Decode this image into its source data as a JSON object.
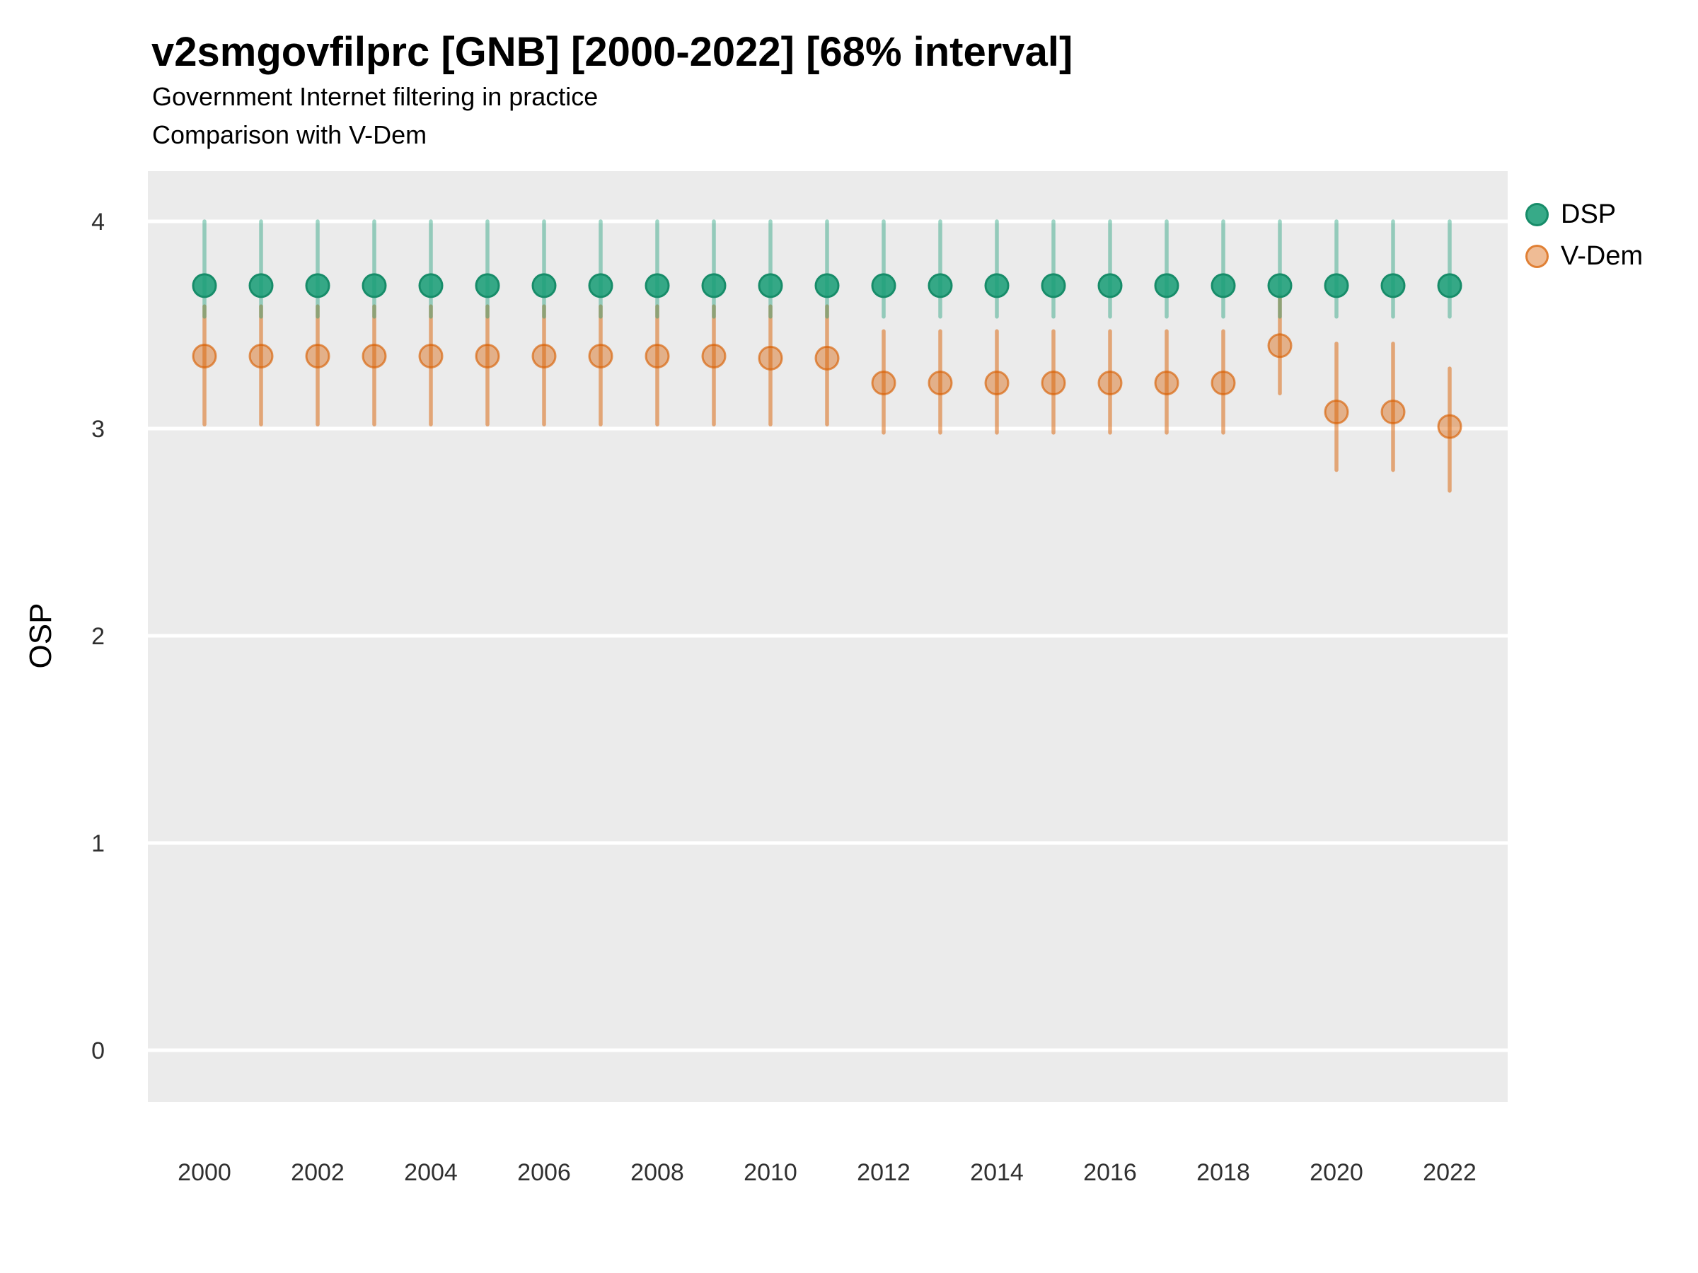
{
  "header": {
    "title": "v2smgovfilprc [GNB] [2000-2022] [68% interval]",
    "subtitle1": "Government Internet filtering in practice",
    "subtitle2": "Comparison with V-Dem"
  },
  "legend": {
    "position": "right-top",
    "items": [
      {
        "label": "DSP",
        "color_key": "dsp"
      },
      {
        "label": "V-Dem",
        "color_key": "vdem"
      }
    ]
  },
  "colors": {
    "dsp": "#1b9e77",
    "vdem": "#d95f02",
    "dsp_bar": "rgba(27,158,119,0.42)",
    "vdem_bar": "rgba(217,95,2,0.5)",
    "dsp_point_fill": "rgba(27,158,119,0.88)",
    "dsp_point_stroke": "#178c69",
    "vdem_point_fill": "rgba(217,95,2,0.42)",
    "vdem_point_stroke": "rgba(217,95,2,0.65)",
    "panel_bg": "#ebebeb",
    "gridline": "#ffffff",
    "axis_text": "#303030",
    "text": "#000000"
  },
  "chart_data": {
    "type": "pointrange",
    "title": "v2smgovfilprc [GNB] [2000-2022] [68% interval]",
    "subtitle": "Government Internet filtering in practice — Comparison with V-Dem",
    "xlabel": "",
    "ylabel": "OSP",
    "xlim": [
      1999,
      2023
    ],
    "ylim": [
      -0.25,
      4.25
    ],
    "grid": "major-horizontal-only",
    "x_ticks": [
      2000,
      2002,
      2004,
      2006,
      2008,
      2010,
      2012,
      2014,
      2016,
      2018,
      2020,
      2022
    ],
    "y_ticks": [
      0,
      1,
      2,
      3,
      4
    ],
    "interval_level": "68%",
    "series": [
      {
        "name": "DSP",
        "color_key": "dsp",
        "values": [
          {
            "year": 2000,
            "y": 3.69,
            "lo": 3.54,
            "hi": 4.0
          },
          {
            "year": 2001,
            "y": 3.69,
            "lo": 3.54,
            "hi": 4.0
          },
          {
            "year": 2002,
            "y": 3.69,
            "lo": 3.54,
            "hi": 4.0
          },
          {
            "year": 2003,
            "y": 3.69,
            "lo": 3.54,
            "hi": 4.0
          },
          {
            "year": 2004,
            "y": 3.69,
            "lo": 3.54,
            "hi": 4.0
          },
          {
            "year": 2005,
            "y": 3.69,
            "lo": 3.54,
            "hi": 4.0
          },
          {
            "year": 2006,
            "y": 3.69,
            "lo": 3.54,
            "hi": 4.0
          },
          {
            "year": 2007,
            "y": 3.69,
            "lo": 3.54,
            "hi": 4.0
          },
          {
            "year": 2008,
            "y": 3.69,
            "lo": 3.54,
            "hi": 4.0
          },
          {
            "year": 2009,
            "y": 3.69,
            "lo": 3.54,
            "hi": 4.0
          },
          {
            "year": 2010,
            "y": 3.69,
            "lo": 3.54,
            "hi": 4.0
          },
          {
            "year": 2011,
            "y": 3.69,
            "lo": 3.54,
            "hi": 4.0
          },
          {
            "year": 2012,
            "y": 3.69,
            "lo": 3.54,
            "hi": 4.0
          },
          {
            "year": 2013,
            "y": 3.69,
            "lo": 3.54,
            "hi": 4.0
          },
          {
            "year": 2014,
            "y": 3.69,
            "lo": 3.54,
            "hi": 4.0
          },
          {
            "year": 2015,
            "y": 3.69,
            "lo": 3.54,
            "hi": 4.0
          },
          {
            "year": 2016,
            "y": 3.69,
            "lo": 3.54,
            "hi": 4.0
          },
          {
            "year": 2017,
            "y": 3.69,
            "lo": 3.54,
            "hi": 4.0
          },
          {
            "year": 2018,
            "y": 3.69,
            "lo": 3.54,
            "hi": 4.0
          },
          {
            "year": 2019,
            "y": 3.69,
            "lo": 3.54,
            "hi": 4.0
          },
          {
            "year": 2020,
            "y": 3.69,
            "lo": 3.54,
            "hi": 4.0
          },
          {
            "year": 2021,
            "y": 3.69,
            "lo": 3.54,
            "hi": 4.0
          },
          {
            "year": 2022,
            "y": 3.69,
            "lo": 3.54,
            "hi": 4.0
          }
        ]
      },
      {
        "name": "V-Dem",
        "color_key": "vdem",
        "values": [
          {
            "year": 2000,
            "y": 3.35,
            "lo": 3.02,
            "hi": 3.59
          },
          {
            "year": 2001,
            "y": 3.35,
            "lo": 3.02,
            "hi": 3.59
          },
          {
            "year": 2002,
            "y": 3.35,
            "lo": 3.02,
            "hi": 3.59
          },
          {
            "year": 2003,
            "y": 3.35,
            "lo": 3.02,
            "hi": 3.59
          },
          {
            "year": 2004,
            "y": 3.35,
            "lo": 3.02,
            "hi": 3.59
          },
          {
            "year": 2005,
            "y": 3.35,
            "lo": 3.02,
            "hi": 3.59
          },
          {
            "year": 2006,
            "y": 3.35,
            "lo": 3.02,
            "hi": 3.59
          },
          {
            "year": 2007,
            "y": 3.35,
            "lo": 3.02,
            "hi": 3.59
          },
          {
            "year": 2008,
            "y": 3.35,
            "lo": 3.02,
            "hi": 3.59
          },
          {
            "year": 2009,
            "y": 3.35,
            "lo": 3.02,
            "hi": 3.59
          },
          {
            "year": 2010,
            "y": 3.34,
            "lo": 3.02,
            "hi": 3.59
          },
          {
            "year": 2011,
            "y": 3.34,
            "lo": 3.02,
            "hi": 3.59
          },
          {
            "year": 2012,
            "y": 3.22,
            "lo": 2.98,
            "hi": 3.47
          },
          {
            "year": 2013,
            "y": 3.22,
            "lo": 2.98,
            "hi": 3.47
          },
          {
            "year": 2014,
            "y": 3.22,
            "lo": 2.98,
            "hi": 3.47
          },
          {
            "year": 2015,
            "y": 3.22,
            "lo": 2.98,
            "hi": 3.47
          },
          {
            "year": 2016,
            "y": 3.22,
            "lo": 2.98,
            "hi": 3.47
          },
          {
            "year": 2017,
            "y": 3.22,
            "lo": 2.98,
            "hi": 3.47
          },
          {
            "year": 2018,
            "y": 3.22,
            "lo": 2.98,
            "hi": 3.47
          },
          {
            "year": 2019,
            "y": 3.4,
            "lo": 3.17,
            "hi": 3.64
          },
          {
            "year": 2020,
            "y": 3.08,
            "lo": 2.8,
            "hi": 3.41
          },
          {
            "year": 2021,
            "y": 3.08,
            "lo": 2.8,
            "hi": 3.41
          },
          {
            "year": 2022,
            "y": 3.01,
            "lo": 2.7,
            "hi": 3.29
          }
        ]
      }
    ]
  }
}
